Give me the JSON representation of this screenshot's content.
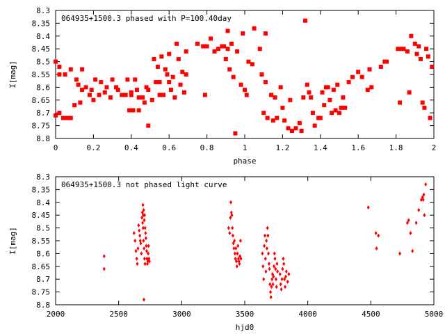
{
  "chart_data": [
    {
      "type": "scatter",
      "title": "064935+1500.3 phased with P=100.40day",
      "xlabel": "phase",
      "ylabel": "I[mag]",
      "xlim": [
        0,
        2
      ],
      "ylim": [
        8.3,
        8.8
      ],
      "y_inverted": true,
      "x_ticks": [
        "0",
        "0.2",
        "0.4",
        "0.6",
        "0.8",
        "1",
        "1.2",
        "1.4",
        "1.6",
        "1.8",
        "2"
      ],
      "y_ticks": [
        "8.3",
        "8.35",
        "8.4",
        "8.45",
        "8.5",
        "8.55",
        "8.6",
        "8.65",
        "8.7",
        "8.75",
        "8.8"
      ],
      "grid": false,
      "marker": "square",
      "color": "#ff0000",
      "points": [
        [
          0.0,
          8.5
        ],
        [
          0.0,
          8.71
        ],
        [
          0.02,
          8.52
        ],
        [
          0.02,
          8.7
        ],
        [
          0.02,
          8.55
        ],
        [
          0.04,
          8.72
        ],
        [
          0.05,
          8.55
        ],
        [
          0.06,
          8.72
        ],
        [
          0.08,
          8.72
        ],
        [
          0.08,
          8.53
        ],
        [
          0.1,
          8.67
        ],
        [
          0.11,
          8.57
        ],
        [
          0.12,
          8.59
        ],
        [
          0.13,
          8.66
        ],
        [
          0.14,
          8.53
        ],
        [
          0.14,
          8.61
        ],
        [
          0.16,
          8.6
        ],
        [
          0.18,
          8.63
        ],
        [
          0.19,
          8.61
        ],
        [
          0.2,
          8.65
        ],
        [
          0.21,
          8.57
        ],
        [
          0.23,
          8.63
        ],
        [
          0.24,
          8.58
        ],
        [
          0.26,
          8.62
        ],
        [
          0.27,
          8.6
        ],
        [
          0.29,
          8.64
        ],
        [
          0.3,
          8.57
        ],
        [
          0.32,
          8.6
        ],
        [
          0.33,
          8.61
        ],
        [
          0.35,
          8.63
        ],
        [
          0.37,
          8.63
        ],
        [
          0.38,
          8.57
        ],
        [
          0.39,
          8.69
        ],
        [
          0.4,
          8.63
        ],
        [
          0.4,
          8.62
        ],
        [
          0.41,
          8.69
        ],
        [
          0.42,
          8.57
        ],
        [
          0.43,
          8.61
        ],
        [
          0.44,
          8.64
        ],
        [
          0.44,
          8.69
        ],
        [
          0.46,
          8.64
        ],
        [
          0.47,
          8.66
        ],
        [
          0.48,
          8.6
        ],
        [
          0.49,
          8.75
        ],
        [
          0.49,
          8.61
        ],
        [
          0.51,
          8.65
        ],
        [
          0.52,
          8.49
        ],
        [
          0.53,
          8.58
        ],
        [
          0.54,
          8.52
        ],
        [
          0.55,
          8.58
        ],
        [
          0.55,
          8.63
        ],
        [
          0.56,
          8.48
        ],
        [
          0.57,
          8.63
        ],
        [
          0.58,
          8.53
        ],
        [
          0.59,
          8.55
        ],
        [
          0.6,
          8.58
        ],
        [
          0.6,
          8.47
        ],
        [
          0.61,
          8.61
        ],
        [
          0.62,
          8.56
        ],
        [
          0.63,
          8.64
        ],
        [
          0.64,
          8.43
        ],
        [
          0.65,
          8.49
        ],
        [
          0.66,
          8.59
        ],
        [
          0.67,
          8.54
        ],
        [
          0.68,
          8.62
        ],
        [
          0.69,
          8.55
        ],
        [
          0.69,
          8.46
        ],
        [
          0.75,
          8.43
        ],
        [
          0.78,
          8.44
        ],
        [
          0.79,
          8.63
        ],
        [
          0.8,
          8.44
        ],
        [
          0.82,
          8.41
        ],
        [
          0.84,
          8.46
        ],
        [
          0.86,
          8.45
        ],
        [
          0.88,
          8.44
        ],
        [
          0.89,
          8.44
        ],
        [
          0.9,
          8.49
        ],
        [
          0.91,
          8.45
        ],
        [
          0.91,
          8.38
        ],
        [
          0.92,
          8.53
        ],
        [
          0.93,
          8.43
        ],
        [
          0.94,
          8.56
        ],
        [
          0.95,
          8.78
        ],
        [
          0.96,
          8.46
        ],
        [
          0.98,
          8.59
        ],
        [
          0.99,
          8.39
        ],
        [
          1.0,
          8.61
        ],
        [
          1.01,
          8.63
        ],
        [
          1.02,
          8.5
        ],
        [
          1.04,
          8.51
        ],
        [
          1.05,
          8.37
        ],
        [
          1.08,
          8.45
        ],
        [
          1.09,
          8.55
        ],
        [
          1.1,
          8.7
        ],
        [
          1.11,
          8.39
        ],
        [
          1.11,
          8.58
        ],
        [
          1.12,
          8.72
        ],
        [
          1.14,
          8.63
        ],
        [
          1.15,
          8.73
        ],
        [
          1.16,
          8.64
        ],
        [
          1.17,
          8.72
        ],
        [
          1.19,
          8.6
        ],
        [
          1.2,
          8.68
        ],
        [
          1.21,
          8.73
        ],
        [
          1.23,
          8.76
        ],
        [
          1.24,
          8.65
        ],
        [
          1.25,
          8.77
        ],
        [
          1.27,
          8.76
        ],
        [
          1.29,
          8.74
        ],
        [
          1.3,
          8.77
        ],
        [
          1.31,
          8.64
        ],
        [
          1.32,
          8.34
        ],
        [
          1.33,
          8.59
        ],
        [
          1.34,
          8.62
        ],
        [
          1.35,
          8.64
        ],
        [
          1.36,
          8.7
        ],
        [
          1.37,
          8.75
        ],
        [
          1.39,
          8.72
        ],
        [
          1.4,
          8.72
        ],
        [
          1.41,
          8.62
        ],
        [
          1.42,
          8.67
        ],
        [
          1.43,
          8.6
        ],
        [
          1.44,
          8.6
        ],
        [
          1.45,
          8.65
        ],
        [
          1.46,
          8.7
        ],
        [
          1.47,
          8.61
        ],
        [
          1.48,
          8.69
        ],
        [
          1.49,
          8.59
        ],
        [
          1.5,
          8.7
        ],
        [
          1.51,
          8.68
        ],
        [
          1.52,
          8.64
        ],
        [
          1.53,
          8.68
        ],
        [
          1.55,
          8.58
        ],
        [
          1.57,
          8.56
        ],
        [
          1.6,
          8.54
        ],
        [
          1.62,
          8.56
        ],
        [
          1.65,
          8.61
        ],
        [
          1.66,
          8.53
        ],
        [
          1.67,
          8.6
        ],
        [
          1.72,
          8.52
        ],
        [
          1.74,
          8.5
        ],
        [
          1.75,
          8.5
        ],
        [
          1.81,
          8.45
        ],
        [
          1.82,
          8.66
        ],
        [
          1.83,
          8.45
        ],
        [
          1.84,
          8.45
        ],
        [
          1.86,
          8.46
        ],
        [
          1.87,
          8.62
        ],
        [
          1.88,
          8.4
        ],
        [
          1.9,
          8.43
        ],
        [
          1.91,
          8.47
        ],
        [
          1.92,
          8.44
        ],
        [
          1.93,
          8.49
        ],
        [
          1.94,
          8.66
        ],
        [
          1.95,
          8.68
        ],
        [
          1.96,
          8.45
        ],
        [
          1.97,
          8.48
        ],
        [
          1.98,
          8.72
        ],
        [
          1.99,
          8.52
        ]
      ]
    },
    {
      "type": "scatter",
      "title": "064935+1500.3 not phased light curve",
      "xlabel": "hjd0",
      "ylabel": "I[mag]",
      "xlim": [
        2000,
        5000
      ],
      "ylim": [
        8.3,
        8.8
      ],
      "y_inverted": true,
      "x_ticks": [
        "2000",
        "2500",
        "3000",
        "3500",
        "4000",
        "4500",
        "5000"
      ],
      "y_ticks": [
        "8.3",
        "8.35",
        "8.4",
        "8.45",
        "8.5",
        "8.55",
        "8.6",
        "8.65",
        "8.7",
        "8.75",
        "8.8"
      ],
      "grid": false,
      "marker": "diamond",
      "color": "#ff0000",
      "points": [
        [
          2385,
          8.61
        ],
        [
          2385,
          8.66
        ],
        [
          2622,
          8.52
        ],
        [
          2630,
          8.55
        ],
        [
          2637,
          8.59
        ],
        [
          2643,
          8.62
        ],
        [
          2648,
          8.64
        ],
        [
          2653,
          8.58
        ],
        [
          2658,
          8.49
        ],
        [
          2663,
          8.51
        ],
        [
          2668,
          8.53
        ],
        [
          2671,
          8.55
        ],
        [
          2675,
          8.56
        ],
        [
          2680,
          8.6
        ],
        [
          2684,
          8.46
        ],
        [
          2688,
          8.44
        ],
        [
          2692,
          8.41
        ],
        [
          2695,
          8.45
        ],
        [
          2698,
          8.43
        ],
        [
          2700,
          8.78
        ],
        [
          2703,
          8.47
        ],
        [
          2706,
          8.45
        ],
        [
          2710,
          8.5
        ],
        [
          2713,
          8.52
        ],
        [
          2716,
          8.54
        ],
        [
          2719,
          8.57
        ],
        [
          2722,
          8.59
        ],
        [
          2725,
          8.62
        ],
        [
          2728,
          8.64
        ],
        [
          2731,
          8.63
        ],
        [
          2734,
          8.6
        ],
        [
          2737,
          8.57
        ],
        [
          2740,
          8.62
        ],
        [
          2744,
          8.63
        ],
        [
          2690,
          8.48
        ],
        [
          2694,
          8.5
        ],
        [
          2697,
          8.55
        ],
        [
          2701,
          8.58
        ],
        [
          2705,
          8.62
        ],
        [
          2709,
          8.64
        ],
        [
          3372,
          8.5
        ],
        [
          3380,
          8.52
        ],
        [
          3386,
          8.46
        ],
        [
          3390,
          8.4
        ],
        [
          3394,
          8.44
        ],
        [
          3398,
          8.45
        ],
        [
          3402,
          8.5
        ],
        [
          3406,
          8.53
        ],
        [
          3410,
          8.56
        ],
        [
          3414,
          8.58
        ],
        [
          3418,
          8.55
        ],
        [
          3422,
          8.6
        ],
        [
          3426,
          8.62
        ],
        [
          3430,
          8.58
        ],
        [
          3434,
          8.63
        ],
        [
          3438,
          8.65
        ],
        [
          3442,
          8.6
        ],
        [
          3446,
          8.57
        ],
        [
          3450,
          8.62
        ],
        [
          3454,
          8.63
        ],
        [
          3458,
          8.64
        ],
        [
          3462,
          8.61
        ],
        [
          3466,
          8.55
        ],
        [
          3470,
          8.62
        ],
        [
          3640,
          8.6
        ],
        [
          3645,
          8.65
        ],
        [
          3650,
          8.7
        ],
        [
          3655,
          8.57
        ],
        [
          3660,
          8.53
        ],
        [
          3664,
          8.62
        ],
        [
          3668,
          8.67
        ],
        [
          3672,
          8.55
        ],
        [
          3676,
          8.58
        ],
        [
          3680,
          8.5
        ],
        [
          3684,
          8.53
        ],
        [
          3688,
          8.6
        ],
        [
          3692,
          8.64
        ],
        [
          3696,
          8.66
        ],
        [
          3700,
          8.72
        ],
        [
          3704,
          8.75
        ],
        [
          3708,
          8.77
        ],
        [
          3712,
          8.73
        ],
        [
          3716,
          8.7
        ],
        [
          3720,
          8.68
        ],
        [
          3724,
          8.72
        ],
        [
          3728,
          8.69
        ],
        [
          3732,
          8.65
        ],
        [
          3736,
          8.6
        ],
        [
          3740,
          8.62
        ],
        [
          3744,
          8.66
        ],
        [
          3748,
          8.7
        ],
        [
          3752,
          8.73
        ],
        [
          3756,
          8.64
        ],
        [
          3760,
          8.67
        ],
        [
          3780,
          8.68
        ],
        [
          3785,
          8.72
        ],
        [
          3790,
          8.74
        ],
        [
          3795,
          8.7
        ],
        [
          3800,
          8.66
        ],
        [
          3805,
          8.62
        ],
        [
          3810,
          8.64
        ],
        [
          3815,
          8.7
        ],
        [
          3820,
          8.73
        ],
        [
          3825,
          8.69
        ],
        [
          3830,
          8.67
        ],
        [
          3840,
          8.71
        ],
        [
          3850,
          8.68
        ],
        [
          4480,
          8.42
        ],
        [
          4540,
          8.52
        ],
        [
          4545,
          8.58
        ],
        [
          4560,
          8.53
        ],
        [
          4730,
          8.6
        ],
        [
          4790,
          8.48
        ],
        [
          4800,
          8.47
        ],
        [
          4815,
          8.52
        ],
        [
          4830,
          8.59
        ],
        [
          4860,
          8.48
        ],
        [
          4880,
          8.43
        ],
        [
          4900,
          8.39
        ],
        [
          4910,
          8.38
        ],
        [
          4915,
          8.39
        ],
        [
          4920,
          8.37
        ],
        [
          4925,
          8.45
        ],
        [
          4935,
          8.33
        ]
      ]
    }
  ]
}
